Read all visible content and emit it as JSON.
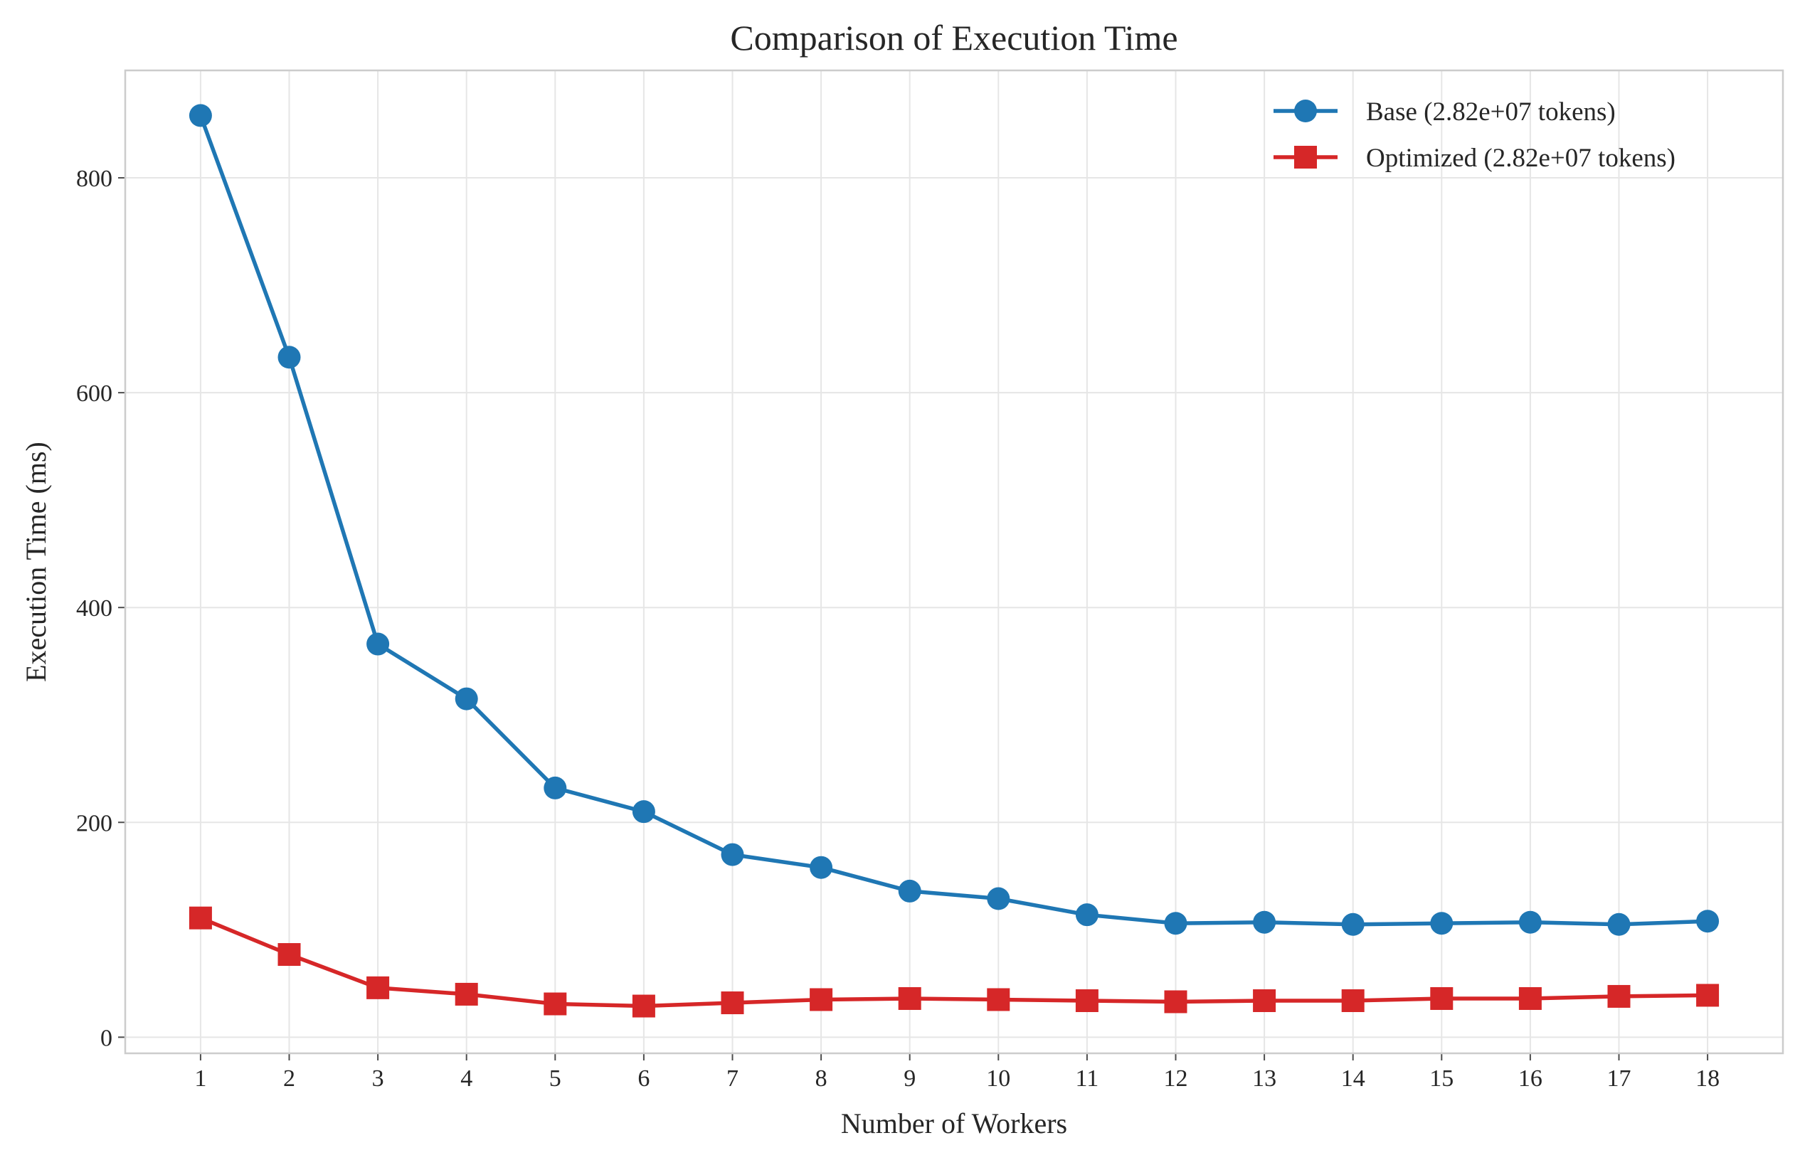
{
  "chart_data": {
    "type": "line",
    "title": "Comparison of Execution Time",
    "xlabel": "Number of Workers",
    "ylabel": "Execution Time (ms)",
    "x": [
      1,
      2,
      3,
      4,
      5,
      6,
      7,
      8,
      9,
      10,
      11,
      12,
      13,
      14,
      15,
      16,
      17,
      18
    ],
    "xlim": [
      0.15,
      18.85
    ],
    "ylim": [
      -15,
      900
    ],
    "yticks": [
      0,
      200,
      400,
      600,
      800
    ],
    "grid": true,
    "legend_position": "top-right",
    "series": [
      {
        "name": "Base (2.82e+07 tokens)",
        "color": "#1f77b4",
        "marker": "circle",
        "values": [
          858,
          633,
          366,
          315,
          232,
          210,
          170,
          158,
          136,
          129,
          114,
          106,
          107,
          105,
          106,
          107,
          105,
          108
        ]
      },
      {
        "name": "Optimized (2.82e+07 tokens)",
        "color": "#d62728",
        "marker": "square",
        "values": [
          111,
          77,
          46,
          40,
          31,
          29,
          32,
          35,
          36,
          35,
          34,
          33,
          34,
          34,
          36,
          36,
          38,
          39
        ]
      }
    ]
  }
}
